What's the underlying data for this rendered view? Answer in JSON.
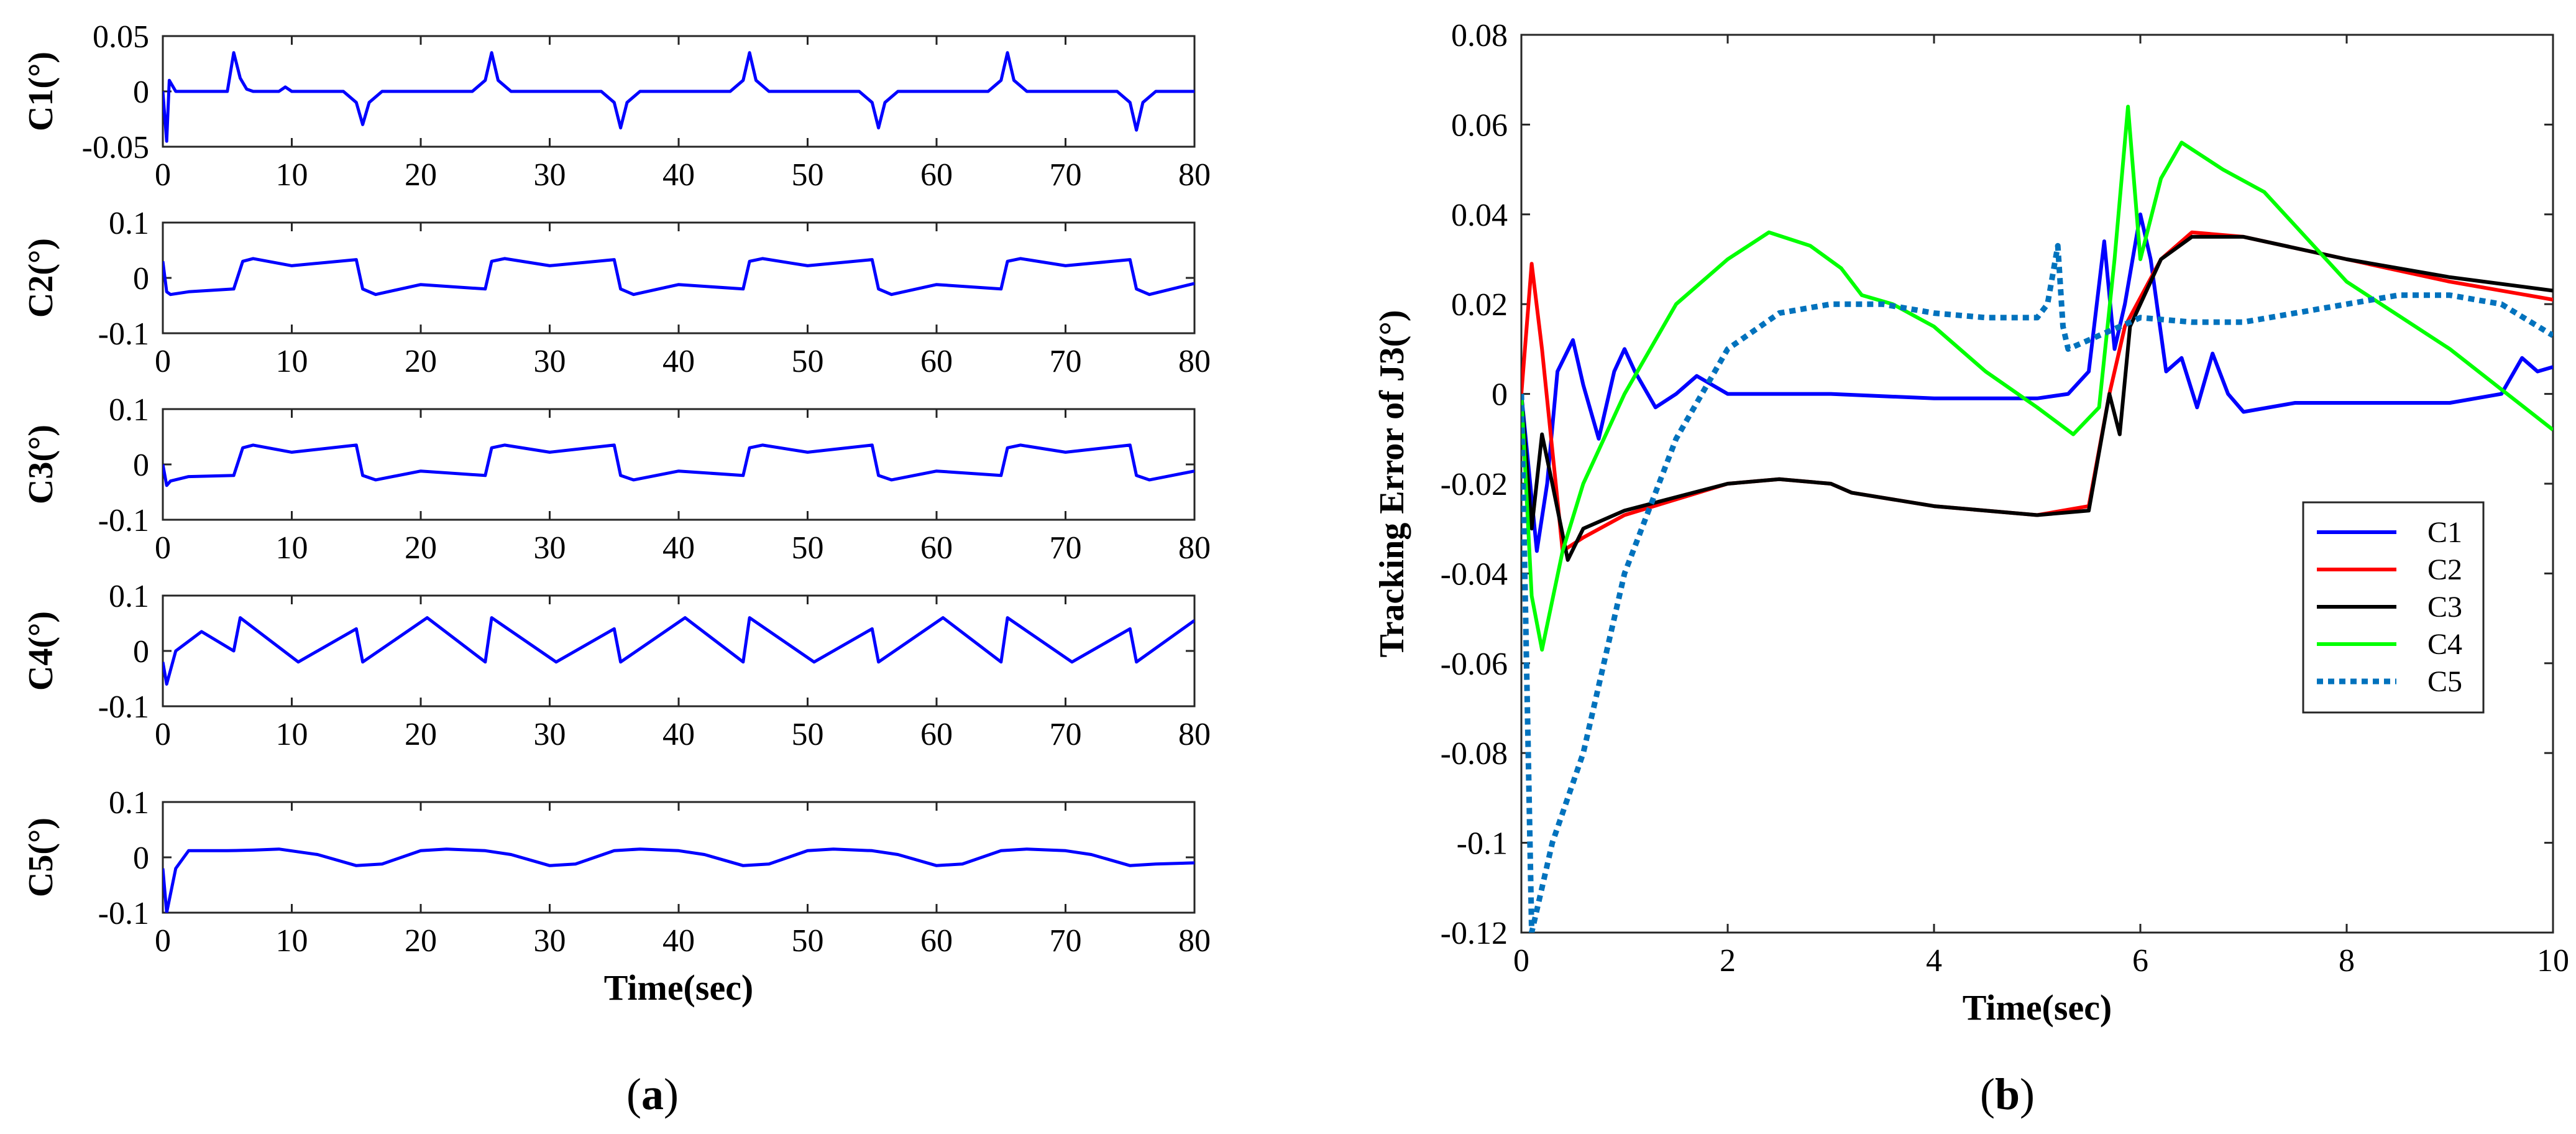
{
  "panel_labels": {
    "a_open": "(",
    "a_letter": "a",
    "a_close": ")",
    "b_open": "(",
    "b_letter": "b",
    "b_close": ")"
  },
  "colors": {
    "blue": "#0000ff",
    "red": "#ff0000",
    "black": "#000000",
    "green": "#00ff00",
    "dotted_blue": "#0072bd"
  },
  "chart_data": [
    {
      "id": "a1",
      "type": "line",
      "ylabel": "C1(°)",
      "xlabel": "",
      "xlim": [
        0,
        80
      ],
      "ylim": [
        -0.05,
        0.05
      ],
      "xticks": [
        0,
        10,
        20,
        30,
        40,
        50,
        60,
        70,
        80
      ],
      "xtick_labels": [
        "0",
        "10",
        "20",
        "30",
        "40",
        "50",
        "60",
        "70",
        "80"
      ],
      "yticks": [
        0.05,
        0,
        -0.05
      ],
      "ytick_labels": [
        "0.05",
        "0",
        "-0.05"
      ],
      "series": [
        {
          "name": "C1",
          "color": "#0000ff",
          "x": [
            0,
            0.3,
            0.5,
            1,
            2,
            4,
            5,
            5.5,
            6,
            6.5,
            7,
            9,
            9.5,
            10,
            14,
            15,
            15.5,
            16,
            17,
            24,
            25,
            25.5,
            26,
            27,
            34,
            35,
            35.5,
            36,
            37,
            44,
            45,
            45.5,
            46,
            47,
            54,
            55,
            55.5,
            56,
            57,
            64,
            65,
            65.5,
            66,
            67,
            74,
            75,
            75.5,
            76,
            77,
            80
          ],
          "y": [
            0,
            -0.045,
            0.01,
            0,
            0,
            0,
            0,
            0.035,
            0.012,
            0.002,
            0,
            0,
            0.004,
            0,
            0,
            -0.01,
            -0.03,
            -0.01,
            0,
            0,
            0.01,
            0.035,
            0.01,
            0,
            0,
            -0.01,
            -0.033,
            -0.01,
            0,
            0,
            0.01,
            0.035,
            0.01,
            0,
            0,
            -0.01,
            -0.033,
            -0.01,
            0,
            0,
            0.01,
            0.035,
            0.01,
            0,
            0,
            -0.01,
            -0.035,
            -0.01,
            0,
            0
          ]
        }
      ]
    },
    {
      "id": "a2",
      "type": "line",
      "ylabel": "C2(°)",
      "xlabel": "",
      "xlim": [
        0,
        80
      ],
      "ylim": [
        -0.1,
        0.1
      ],
      "xticks": [
        0,
        10,
        20,
        30,
        40,
        50,
        60,
        70,
        80
      ],
      "xtick_labels": [
        "0",
        "10",
        "20",
        "30",
        "40",
        "50",
        "60",
        "70",
        "80"
      ],
      "yticks": [
        0.1,
        0,
        -0.1
      ],
      "ytick_labels": [
        "0.1",
        "0",
        "-0.1"
      ],
      "series": [
        {
          "name": "C2",
          "color": "#0000ff",
          "x": [
            0,
            0.3,
            0.6,
            2,
            5.5,
            6.2,
            7,
            10,
            15,
            15.5,
            16.5,
            20,
            25,
            25.5,
            26.5,
            30,
            35,
            35.5,
            36.5,
            40,
            45,
            45.5,
            46.5,
            50,
            55,
            55.5,
            56.5,
            60,
            65,
            65.5,
            66.5,
            70,
            75,
            75.5,
            76.5,
            80
          ],
          "y": [
            0.03,
            -0.025,
            -0.03,
            -0.025,
            -0.02,
            0.03,
            0.035,
            0.022,
            0.033,
            -0.02,
            -0.03,
            -0.012,
            -0.02,
            0.03,
            0.035,
            0.022,
            0.033,
            -0.02,
            -0.03,
            -0.012,
            -0.02,
            0.03,
            0.035,
            0.022,
            0.033,
            -0.02,
            -0.03,
            -0.012,
            -0.02,
            0.03,
            0.035,
            0.022,
            0.033,
            -0.02,
            -0.03,
            -0.01
          ]
        }
      ]
    },
    {
      "id": "a3",
      "type": "line",
      "ylabel": "C3(°)",
      "xlabel": "",
      "xlim": [
        0,
        80
      ],
      "ylim": [
        -0.1,
        0.1
      ],
      "xticks": [
        0,
        10,
        20,
        30,
        40,
        50,
        60,
        70,
        80
      ],
      "xtick_labels": [
        "0",
        "10",
        "20",
        "30",
        "40",
        "50",
        "60",
        "70",
        "80"
      ],
      "yticks": [
        0.1,
        0,
        -0.1
      ],
      "ytick_labels": [
        "0.1",
        "0",
        "-0.1"
      ],
      "series": [
        {
          "name": "C3",
          "color": "#0000ff",
          "x": [
            0,
            0.3,
            0.6,
            2,
            5.5,
            6.2,
            7,
            10,
            15,
            15.5,
            16.5,
            20,
            25,
            25.5,
            26.5,
            30,
            35,
            35.5,
            36.5,
            40,
            45,
            45.5,
            46.5,
            50,
            55,
            55.5,
            56.5,
            60,
            65,
            65.5,
            66.5,
            70,
            75,
            75.5,
            76.5,
            80
          ],
          "y": [
            0,
            -0.038,
            -0.03,
            -0.022,
            -0.02,
            0.03,
            0.035,
            0.022,
            0.035,
            -0.02,
            -0.028,
            -0.012,
            -0.02,
            0.03,
            0.035,
            0.022,
            0.035,
            -0.02,
            -0.028,
            -0.012,
            -0.02,
            0.03,
            0.035,
            0.022,
            0.035,
            -0.02,
            -0.028,
            -0.012,
            -0.02,
            0.03,
            0.035,
            0.022,
            0.035,
            -0.02,
            -0.028,
            -0.012
          ]
        }
      ]
    },
    {
      "id": "a4",
      "type": "line",
      "ylabel": "C4(°)",
      "xlabel": "",
      "xlim": [
        0,
        80
      ],
      "ylim": [
        -0.1,
        0.1
      ],
      "xticks": [
        0,
        10,
        20,
        30,
        40,
        50,
        60,
        70,
        80
      ],
      "xtick_labels": [
        "0",
        "10",
        "20",
        "30",
        "40",
        "50",
        "60",
        "70",
        "80"
      ],
      "yticks": [
        0.1,
        0,
        -0.1
      ],
      "ytick_labels": [
        "0.1",
        "0",
        "-0.1"
      ],
      "series": [
        {
          "name": "C4",
          "color": "#0000ff",
          "x": [
            0,
            0.3,
            1,
            3,
            5.5,
            6,
            10.5,
            15,
            15.5,
            20.5,
            25,
            25.5,
            30.5,
            35,
            35.5,
            40.5,
            45,
            45.5,
            50.5,
            55,
            55.5,
            60.5,
            65,
            65.5,
            70.5,
            75,
            75.5,
            80
          ],
          "y": [
            -0.02,
            -0.06,
            0,
            0.035,
            0,
            0.06,
            -0.02,
            0.04,
            -0.02,
            0.06,
            -0.02,
            0.06,
            -0.02,
            0.04,
            -0.02,
            0.06,
            -0.02,
            0.06,
            -0.02,
            0.04,
            -0.02,
            0.06,
            -0.02,
            0.06,
            -0.02,
            0.04,
            -0.02,
            0.055
          ]
        }
      ]
    },
    {
      "id": "a5",
      "type": "line",
      "ylabel": "C5(°)",
      "xlabel": "Time(sec)",
      "xlim": [
        0,
        80
      ],
      "ylim": [
        -0.1,
        0.1
      ],
      "xticks": [
        0,
        10,
        20,
        30,
        40,
        50,
        60,
        70,
        80
      ],
      "xtick_labels": [
        "0",
        "10",
        "20",
        "30",
        "40",
        "50",
        "60",
        "70",
        "80"
      ],
      "yticks": [
        0.1,
        0,
        -0.1
      ],
      "ytick_labels": [
        "0.1",
        "0",
        "-0.1"
      ],
      "series": [
        {
          "name": "C5",
          "color": "#0000ff",
          "x": [
            0,
            0.3,
            1,
            2,
            5,
            7,
            9,
            12,
            15,
            17,
            20,
            22,
            25,
            27,
            30,
            32,
            35,
            37,
            40,
            42,
            45,
            47,
            50,
            52,
            55,
            57,
            60,
            62,
            65,
            67,
            70,
            72,
            75,
            77,
            80
          ],
          "y": [
            -0.02,
            -0.1,
            -0.02,
            0.012,
            0.012,
            0.013,
            0.015,
            0.005,
            -0.015,
            -0.012,
            0.012,
            0.015,
            0.012,
            0.005,
            -0.015,
            -0.012,
            0.012,
            0.015,
            0.012,
            0.005,
            -0.015,
            -0.012,
            0.012,
            0.015,
            0.012,
            0.005,
            -0.015,
            -0.012,
            0.012,
            0.015,
            0.012,
            0.005,
            -0.015,
            -0.012,
            -0.01
          ]
        }
      ]
    },
    {
      "id": "b",
      "type": "line",
      "ylabel": "Tracking Error of J3(°)",
      "xlabel": "Time(sec)",
      "xlim": [
        0,
        10
      ],
      "ylim": [
        -0.12,
        0.08
      ],
      "xticks": [
        0,
        2,
        4,
        6,
        8,
        10
      ],
      "xtick_labels": [
        "0",
        "2",
        "4",
        "6",
        "8",
        "10"
      ],
      "yticks": [
        0.08,
        0.06,
        0.04,
        0.02,
        0,
        -0.02,
        -0.04,
        -0.06,
        -0.08,
        -0.1,
        -0.12
      ],
      "ytick_labels": [
        "0.08",
        "0.06",
        "0.04",
        "0.02",
        "0",
        "-0.02",
        "-0.04",
        "-0.06",
        "-0.08",
        "-0.1",
        "-0.12"
      ],
      "legend": "right",
      "series": [
        {
          "name": "C1",
          "color": "#0000ff",
          "dash": "",
          "x": [
            0,
            0.15,
            0.25,
            0.35,
            0.5,
            0.6,
            0.75,
            0.9,
            1.0,
            1.1,
            1.3,
            1.5,
            1.7,
            2.0,
            2.5,
            3,
            4,
            5,
            5.3,
            5.5,
            5.65,
            5.75,
            5.85,
            6.0,
            6.1,
            6.25,
            6.4,
            6.55,
            6.7,
            6.85,
            7.0,
            7.5,
            8,
            9,
            9.5,
            9.7,
            9.85,
            10
          ],
          "y": [
            0,
            -0.035,
            -0.02,
            0.005,
            0.012,
            0.002,
            -0.01,
            0.005,
            0.01,
            0.005,
            -0.003,
            0,
            0.004,
            0,
            0,
            0,
            -0.001,
            -0.001,
            0,
            0.005,
            0.034,
            0.01,
            0.02,
            0.04,
            0.03,
            0.005,
            0.008,
            -0.003,
            0.009,
            0.0,
            -0.004,
            -0.002,
            -0.002,
            -0.002,
            0,
            0.008,
            0.005,
            0.006
          ]
        },
        {
          "name": "C2",
          "color": "#ff0000",
          "dash": "",
          "x": [
            0,
            0.1,
            0.2,
            0.4,
            0.6,
            1,
            2,
            2.5,
            3,
            3.2,
            4,
            5,
            5.5,
            5.7,
            5.85,
            6.2,
            6.5,
            7,
            8,
            9,
            10
          ],
          "y": [
            0,
            0.029,
            0.01,
            -0.035,
            -0.032,
            -0.027,
            -0.02,
            -0.019,
            -0.02,
            -0.022,
            -0.025,
            -0.027,
            -0.025,
            0,
            0.015,
            0.03,
            0.036,
            0.035,
            0.03,
            0.025,
            0.021
          ]
        },
        {
          "name": "C3",
          "color": "#000000",
          "dash": "",
          "x": [
            0,
            0.1,
            0.2,
            0.3,
            0.45,
            0.6,
            1,
            2,
            2.5,
            3,
            3.2,
            4,
            5,
            5.5,
            5.7,
            5.8,
            5.9,
            6.2,
            6.5,
            7,
            8,
            9,
            10
          ],
          "y": [
            0,
            -0.03,
            -0.009,
            -0.02,
            -0.037,
            -0.03,
            -0.026,
            -0.02,
            -0.019,
            -0.02,
            -0.022,
            -0.025,
            -0.027,
            -0.026,
            0,
            -0.009,
            0.015,
            0.03,
            0.035,
            0.035,
            0.03,
            0.026,
            0.023
          ]
        },
        {
          "name": "C4",
          "color": "#00ff00",
          "dash": "",
          "x": [
            0,
            0.1,
            0.2,
            0.4,
            0.6,
            1,
            1.5,
            2,
            2.4,
            2.8,
            3.1,
            3.3,
            3.6,
            4,
            4.5,
            5,
            5.35,
            5.6,
            5.75,
            5.88,
            6.0,
            6.2,
            6.4,
            6.8,
            7.2,
            8,
            9,
            10
          ],
          "y": [
            0,
            -0.045,
            -0.057,
            -0.035,
            -0.02,
            0,
            0.02,
            0.03,
            0.036,
            0.033,
            0.028,
            0.022,
            0.02,
            0.015,
            0.005,
            -0.003,
            -0.009,
            -0.003,
            0.03,
            0.064,
            0.03,
            0.048,
            0.056,
            0.05,
            0.045,
            0.025,
            0.01,
            -0.008
          ]
        },
        {
          "name": "C5",
          "color": "#0072bd",
          "dash": "6,6",
          "x": [
            0,
            0.1,
            0.3,
            0.6,
            1,
            1.5,
            2,
            2.5,
            3,
            3.5,
            4,
            4.5,
            5,
            5.1,
            5.2,
            5.25,
            5.3,
            5.5,
            6,
            6.5,
            7,
            7.5,
            8,
            8.5,
            9,
            9.5,
            10
          ],
          "y": [
            0,
            -0.12,
            -0.1,
            -0.08,
            -0.04,
            -0.01,
            0.01,
            0.018,
            0.02,
            0.02,
            0.018,
            0.017,
            0.017,
            0.02,
            0.033,
            0.015,
            0.01,
            0.012,
            0.017,
            0.016,
            0.016,
            0.018,
            0.02,
            0.022,
            0.022,
            0.02,
            0.013
          ]
        }
      ]
    }
  ]
}
